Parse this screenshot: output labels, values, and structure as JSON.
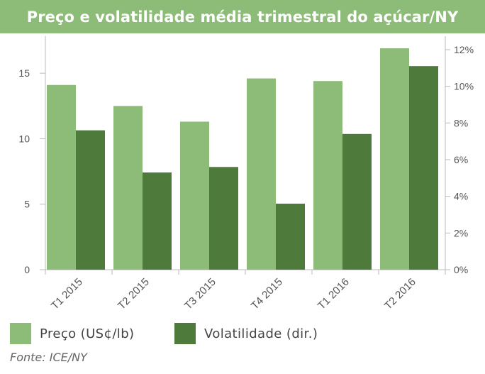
{
  "title": "Preço e volatilidade média trimestral do açúcar/NY",
  "source": "Fonte: ICE/NY",
  "colors": {
    "title_bg": "#8dbb78",
    "price": "#8dbb78",
    "volatility": "#4e7a3b",
    "axis": "#bbbbbb"
  },
  "chart_data": {
    "type": "bar",
    "categories": [
      "T1 2015",
      "T2 2015",
      "T3 2015",
      "T4 2015",
      "T1 2016",
      "T2 2016"
    ],
    "series": [
      {
        "name": "Preço (US¢/lb)",
        "axis": "left",
        "values": [
          14.1,
          12.5,
          11.3,
          14.6,
          14.4,
          16.9
        ]
      },
      {
        "name": "Volatilidade (dir.)",
        "axis": "right",
        "values": [
          7.6,
          5.3,
          5.6,
          3.6,
          7.4,
          11.1
        ]
      }
    ],
    "left_axis": {
      "min": 0,
      "max": 17.5,
      "ticks": [
        0,
        5,
        10,
        15
      ],
      "tick_labels": [
        "0",
        "5",
        "10",
        "15"
      ]
    },
    "right_axis": {
      "min": 0,
      "max": 12.5,
      "ticks": [
        0,
        2,
        4,
        6,
        8,
        10,
        12
      ],
      "tick_labels": [
        "0%",
        "2%",
        "4%",
        "6%",
        "8%",
        "10%",
        "12%"
      ]
    },
    "grid": false,
    "legend_position": "bottom"
  }
}
